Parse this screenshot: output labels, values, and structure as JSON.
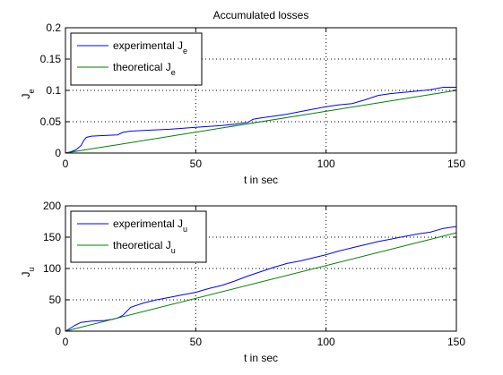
{
  "chart_data": [
    {
      "type": "line",
      "title": "Accumulated losses",
      "xlabel": "t in sec",
      "ylabel_main": "J",
      "ylabel_sub": "e",
      "xlim": [
        0,
        150
      ],
      "ylim": [
        0,
        0.2
      ],
      "xticks": [
        0,
        50,
        100,
        150
      ],
      "xtick_labels": [
        "0",
        "50",
        "100",
        "150"
      ],
      "yticks": [
        0,
        0.05,
        0.1,
        0.15,
        0.2
      ],
      "ytick_labels": [
        "0",
        "0.05",
        "0.1",
        "0.15",
        "0.2"
      ],
      "grid": true,
      "legend_position": "top-left",
      "series": [
        {
          "name": "experimental J",
          "name_sub": "e",
          "color": "#0000ff",
          "x": [
            0,
            2,
            4,
            6,
            7,
            8,
            10,
            15,
            20,
            22,
            25,
            30,
            40,
            50,
            60,
            65,
            70,
            72,
            75,
            80,
            85,
            90,
            95,
            100,
            105,
            110,
            115,
            120,
            125,
            130,
            135,
            140,
            145,
            150
          ],
          "y": [
            0,
            0.002,
            0.005,
            0.012,
            0.02,
            0.025,
            0.027,
            0.028,
            0.029,
            0.033,
            0.035,
            0.036,
            0.038,
            0.041,
            0.044,
            0.046,
            0.049,
            0.054,
            0.056,
            0.059,
            0.062,
            0.066,
            0.07,
            0.074,
            0.077,
            0.079,
            0.085,
            0.092,
            0.095,
            0.097,
            0.099,
            0.101,
            0.105,
            0.105
          ]
        },
        {
          "name": "theoretical J",
          "name_sub": "e",
          "color": "#008000",
          "x": [
            0,
            150
          ],
          "y": [
            0,
            0.1
          ]
        }
      ]
    },
    {
      "type": "line",
      "title": "",
      "xlabel": "t in sec",
      "ylabel_main": "J",
      "ylabel_sub": "u",
      "xlim": [
        0,
        150
      ],
      "ylim": [
        0,
        200
      ],
      "xticks": [
        0,
        50,
        100,
        150
      ],
      "xtick_labels": [
        "0",
        "50",
        "100",
        "150"
      ],
      "yticks": [
        0,
        50,
        100,
        150,
        200
      ],
      "ytick_labels": [
        "0",
        "50",
        "100",
        "150",
        "200"
      ],
      "grid": true,
      "legend_position": "top-left",
      "series": [
        {
          "name": "experimental J",
          "name_sub": "u",
          "color": "#0000ff",
          "x": [
            0,
            2,
            4,
            6,
            8,
            10,
            15,
            18,
            20,
            22,
            25,
            30,
            35,
            40,
            45,
            50,
            55,
            60,
            65,
            70,
            75,
            80,
            85,
            90,
            95,
            100,
            105,
            110,
            115,
            120,
            125,
            130,
            135,
            140,
            145,
            150
          ],
          "y": [
            0,
            5,
            10,
            14,
            15,
            16,
            17,
            19,
            21,
            25,
            38,
            45,
            50,
            54,
            58,
            62,
            68,
            73,
            80,
            88,
            95,
            102,
            108,
            112,
            117,
            122,
            128,
            133,
            138,
            143,
            147,
            151,
            155,
            158,
            164,
            167
          ]
        },
        {
          "name": "theoretical J",
          "name_sub": "u",
          "color": "#008000",
          "x": [
            0,
            150
          ],
          "y": [
            0,
            157
          ]
        }
      ]
    }
  ]
}
